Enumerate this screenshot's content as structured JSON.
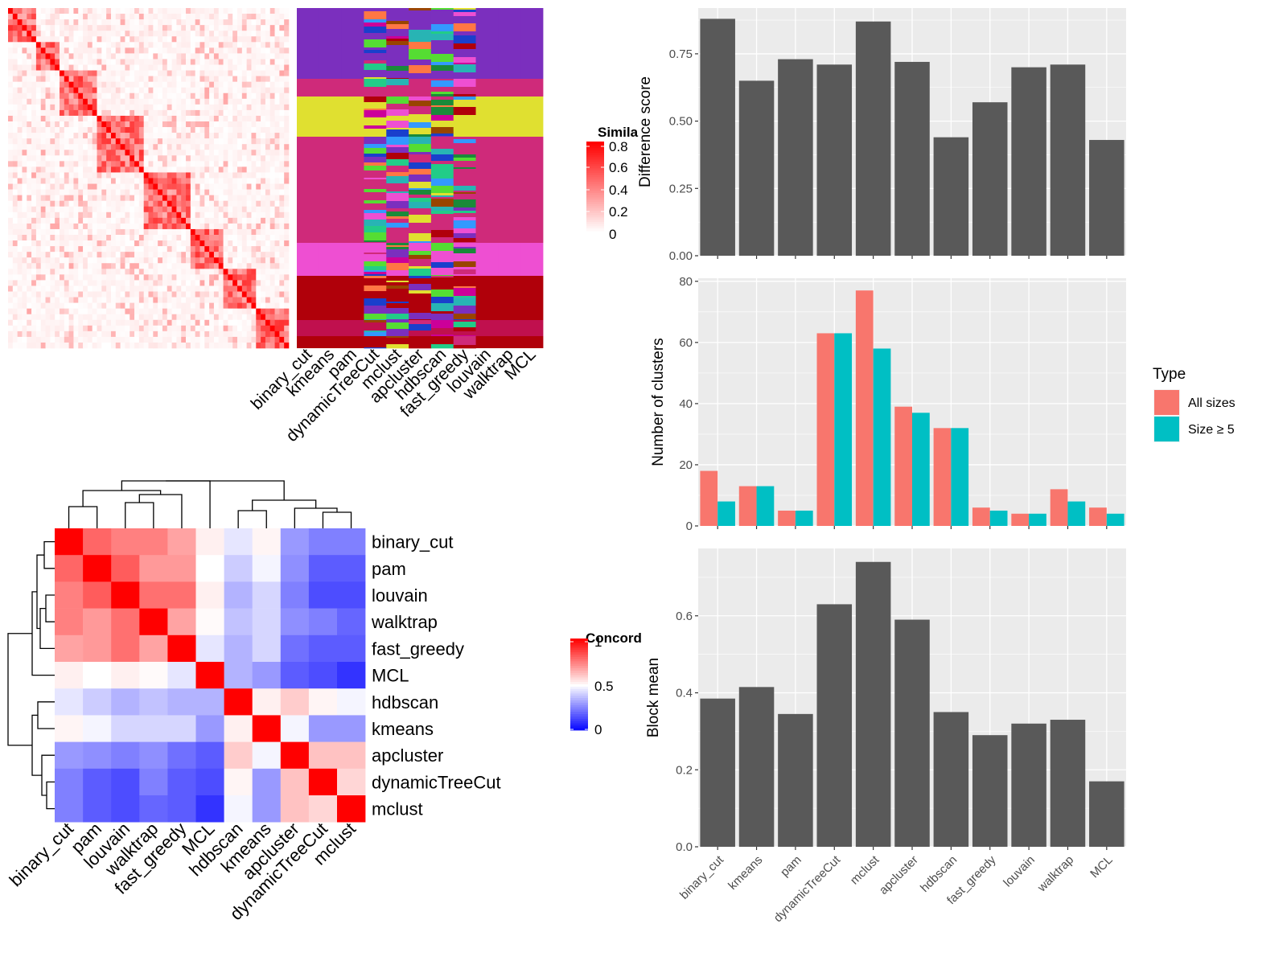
{
  "methods_bar": [
    "binary_cut",
    "kmeans",
    "pam",
    "dynamicTreeCut",
    "mclust",
    "apcluster",
    "hdbscan",
    "fast_greedy",
    "louvain",
    "walktrap",
    "MCL"
  ],
  "methods_concord": [
    "binary_cut",
    "pam",
    "louvain",
    "walktrap",
    "fast_greedy",
    "MCL",
    "hdbscan",
    "kmeans",
    "apcluster",
    "dynamicTreeCut",
    "mclust"
  ],
  "colors": {
    "bar": "#595959",
    "panel_bg": "#ebebeb",
    "grid": "#ffffff",
    "all_sizes": "#f8766d",
    "size5": "#00bfc4",
    "high": "#ff0000",
    "mid": "#ffffff",
    "low": "#0000ff"
  },
  "similarity_legend": {
    "title": "Simila",
    "ticks": [
      "0.8",
      "0.6",
      "0.4",
      "0.2",
      "0"
    ]
  },
  "concord_legend": {
    "title": "Concord",
    "ticks": [
      "1",
      "0.5",
      "0"
    ]
  },
  "chart_data": [
    {
      "type": "heatmap",
      "name": "similarity-matrix",
      "note_color_range": [
        0,
        0.8
      ],
      "legend_title": "Simila",
      "columns": [
        "binary_cut",
        "kmeans",
        "pam",
        "dynamicTreeCut",
        "mclust",
        "apcluster",
        "hdbscan",
        "fast_greedy",
        "louvain",
        "walktrap",
        "MCL"
      ]
    },
    {
      "type": "bar",
      "ylabel": "Difference score",
      "categories": [
        "binary_cut",
        "kmeans",
        "pam",
        "dynamicTreeCut",
        "mclust",
        "apcluster",
        "hdbscan",
        "fast_greedy",
        "louvain",
        "walktrap",
        "MCL"
      ],
      "values": [
        0.88,
        0.65,
        0.73,
        0.71,
        0.87,
        0.72,
        0.44,
        0.57,
        0.7,
        0.71,
        0.43
      ],
      "ylim": [
        0,
        0.92
      ],
      "yticks": [
        "0.00",
        "0.25",
        "0.50",
        "0.75"
      ]
    },
    {
      "type": "bar",
      "ylabel": "Number of clusters",
      "categories": [
        "binary_cut",
        "kmeans",
        "pam",
        "dynamicTreeCut",
        "mclust",
        "apcluster",
        "hdbscan",
        "fast_greedy",
        "louvain",
        "walktrap",
        "MCL"
      ],
      "series": [
        {
          "name": "All sizes",
          "values": [
            18,
            13,
            5,
            63,
            77,
            39,
            32,
            6,
            4,
            12,
            6
          ]
        },
        {
          "name": "Size ≥ 5",
          "values": [
            8,
            13,
            5,
            63,
            58,
            37,
            32,
            5,
            4,
            8,
            4
          ]
        }
      ],
      "legend_title": "Type",
      "legend_position": "right",
      "ylim": [
        0,
        81
      ],
      "yticks": [
        "0",
        "20",
        "40",
        "60",
        "80"
      ]
    },
    {
      "type": "bar",
      "ylabel": "Block mean",
      "categories": [
        "binary_cut",
        "kmeans",
        "pam",
        "dynamicTreeCut",
        "mclust",
        "apcluster",
        "hdbscan",
        "fast_greedy",
        "louvain",
        "walktrap",
        "MCL"
      ],
      "values": [
        0.385,
        0.415,
        0.345,
        0.63,
        0.74,
        0.59,
        0.35,
        0.29,
        0.32,
        0.33,
        0.17
      ],
      "ylim": [
        0,
        0.775
      ],
      "yticks": [
        "0.0",
        "0.2",
        "0.4",
        "0.6"
      ]
    },
    {
      "type": "heatmap",
      "name": "concordance",
      "legend_title": "Concord",
      "rows": [
        "binary_cut",
        "pam",
        "louvain",
        "walktrap",
        "fast_greedy",
        "MCL",
        "hdbscan",
        "kmeans",
        "apcluster",
        "dynamicTreeCut",
        "mclust"
      ],
      "columns": [
        "binary_cut",
        "pam",
        "louvain",
        "walktrap",
        "fast_greedy",
        "MCL",
        "hdbscan",
        "kmeans",
        "apcluster",
        "dynamicTreeCut",
        "mclust"
      ],
      "values": [
        [
          1.0,
          0.8,
          0.75,
          0.75,
          0.68,
          0.53,
          0.45,
          0.52,
          0.3,
          0.25,
          0.25
        ],
        [
          0.8,
          1.0,
          0.82,
          0.7,
          0.7,
          0.5,
          0.4,
          0.48,
          0.28,
          0.18,
          0.18
        ],
        [
          0.75,
          0.82,
          1.0,
          0.78,
          0.78,
          0.53,
          0.35,
          0.42,
          0.25,
          0.15,
          0.15
        ],
        [
          0.75,
          0.7,
          0.78,
          1.0,
          0.68,
          0.51,
          0.38,
          0.42,
          0.28,
          0.25,
          0.2
        ],
        [
          0.68,
          0.7,
          0.78,
          0.68,
          1.0,
          0.45,
          0.35,
          0.42,
          0.22,
          0.18,
          0.18
        ],
        [
          0.53,
          0.5,
          0.53,
          0.51,
          0.45,
          1.0,
          0.35,
          0.3,
          0.18,
          0.15,
          0.1
        ],
        [
          0.45,
          0.4,
          0.35,
          0.38,
          0.35,
          0.35,
          1.0,
          0.53,
          0.6,
          0.52,
          0.48
        ],
        [
          0.52,
          0.48,
          0.42,
          0.42,
          0.42,
          0.3,
          0.53,
          1.0,
          0.48,
          0.3,
          0.3
        ],
        [
          0.3,
          0.28,
          0.25,
          0.28,
          0.22,
          0.18,
          0.6,
          0.48,
          1.0,
          0.62,
          0.62
        ],
        [
          0.25,
          0.18,
          0.15,
          0.25,
          0.18,
          0.15,
          0.52,
          0.3,
          0.62,
          1.0,
          0.58
        ],
        [
          0.25,
          0.18,
          0.15,
          0.2,
          0.18,
          0.1,
          0.48,
          0.3,
          0.62,
          0.58,
          1.0
        ]
      ],
      "color_range": [
        0,
        1
      ]
    }
  ]
}
